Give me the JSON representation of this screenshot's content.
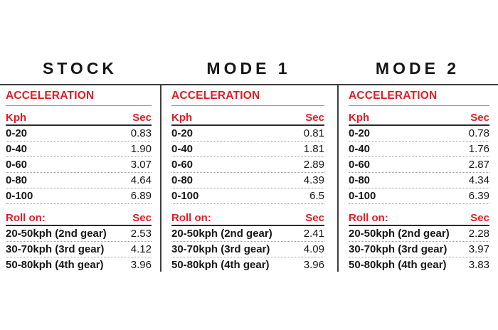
{
  "colors": {
    "accent_red": "#e31b23",
    "text_black": "#161616",
    "rule_dark": "#3d3d3d",
    "rule_gray": "#9a9a9a",
    "dotted_gray": "#9e9e9e"
  },
  "columns": [
    {
      "title": "STOCK",
      "section_header": "ACCELERATION",
      "accel_header": {
        "label": "Kph",
        "unit": "Sec"
      },
      "accel_rows": [
        {
          "label": "0-20",
          "value": "0.83"
        },
        {
          "label": "0-40",
          "value": "1.90"
        },
        {
          "label": "0-60",
          "value": "3.07"
        },
        {
          "label": "0-80",
          "value": "4.64"
        },
        {
          "label": "0-100",
          "value": "6.89"
        }
      ],
      "rollon_header": {
        "label": "Roll on:",
        "unit": "Sec"
      },
      "rollon_rows": [
        {
          "label": "20-50kph (2nd gear)",
          "value": "2.53"
        },
        {
          "label": "30-70kph (3rd gear)",
          "value": "4.12"
        },
        {
          "label": "50-80kph (4th gear)",
          "value": "3.96"
        }
      ]
    },
    {
      "title": "MODE 1",
      "section_header": "ACCELERATION",
      "accel_header": {
        "label": "Kph",
        "unit": "Sec"
      },
      "accel_rows": [
        {
          "label": "0-20",
          "value": "0.81"
        },
        {
          "label": "0-40",
          "value": "1.81"
        },
        {
          "label": "0-60",
          "value": "2.89"
        },
        {
          "label": "0-80",
          "value": "4.39"
        },
        {
          "label": "0-100",
          "value": "6.5"
        }
      ],
      "rollon_header": {
        "label": "Roll on:",
        "unit": "Sec"
      },
      "rollon_rows": [
        {
          "label": "20-50kph (2nd gear)",
          "value": "2.41"
        },
        {
          "label": "30-70kph (3rd gear)",
          "value": "4.09"
        },
        {
          "label": "50-80kph (4th gear)",
          "value": "3.96"
        }
      ]
    },
    {
      "title": "MODE 2",
      "section_header": "ACCELERATION",
      "accel_header": {
        "label": "Kph",
        "unit": "Sec"
      },
      "accel_rows": [
        {
          "label": "0-20",
          "value": "0.78"
        },
        {
          "label": "0-40",
          "value": "1.76"
        },
        {
          "label": "0-60",
          "value": "2.87"
        },
        {
          "label": "0-80",
          "value": "4.34"
        },
        {
          "label": "0-100",
          "value": "6.39"
        }
      ],
      "rollon_header": {
        "label": "Roll on:",
        "unit": "Sec"
      },
      "rollon_rows": [
        {
          "label": "20-50kph (2nd gear)",
          "value": "2.28"
        },
        {
          "label": "30-70kph (3rd gear)",
          "value": "3.97"
        },
        {
          "label": "50-80kph (4th gear)",
          "value": "3.83"
        }
      ]
    }
  ]
}
